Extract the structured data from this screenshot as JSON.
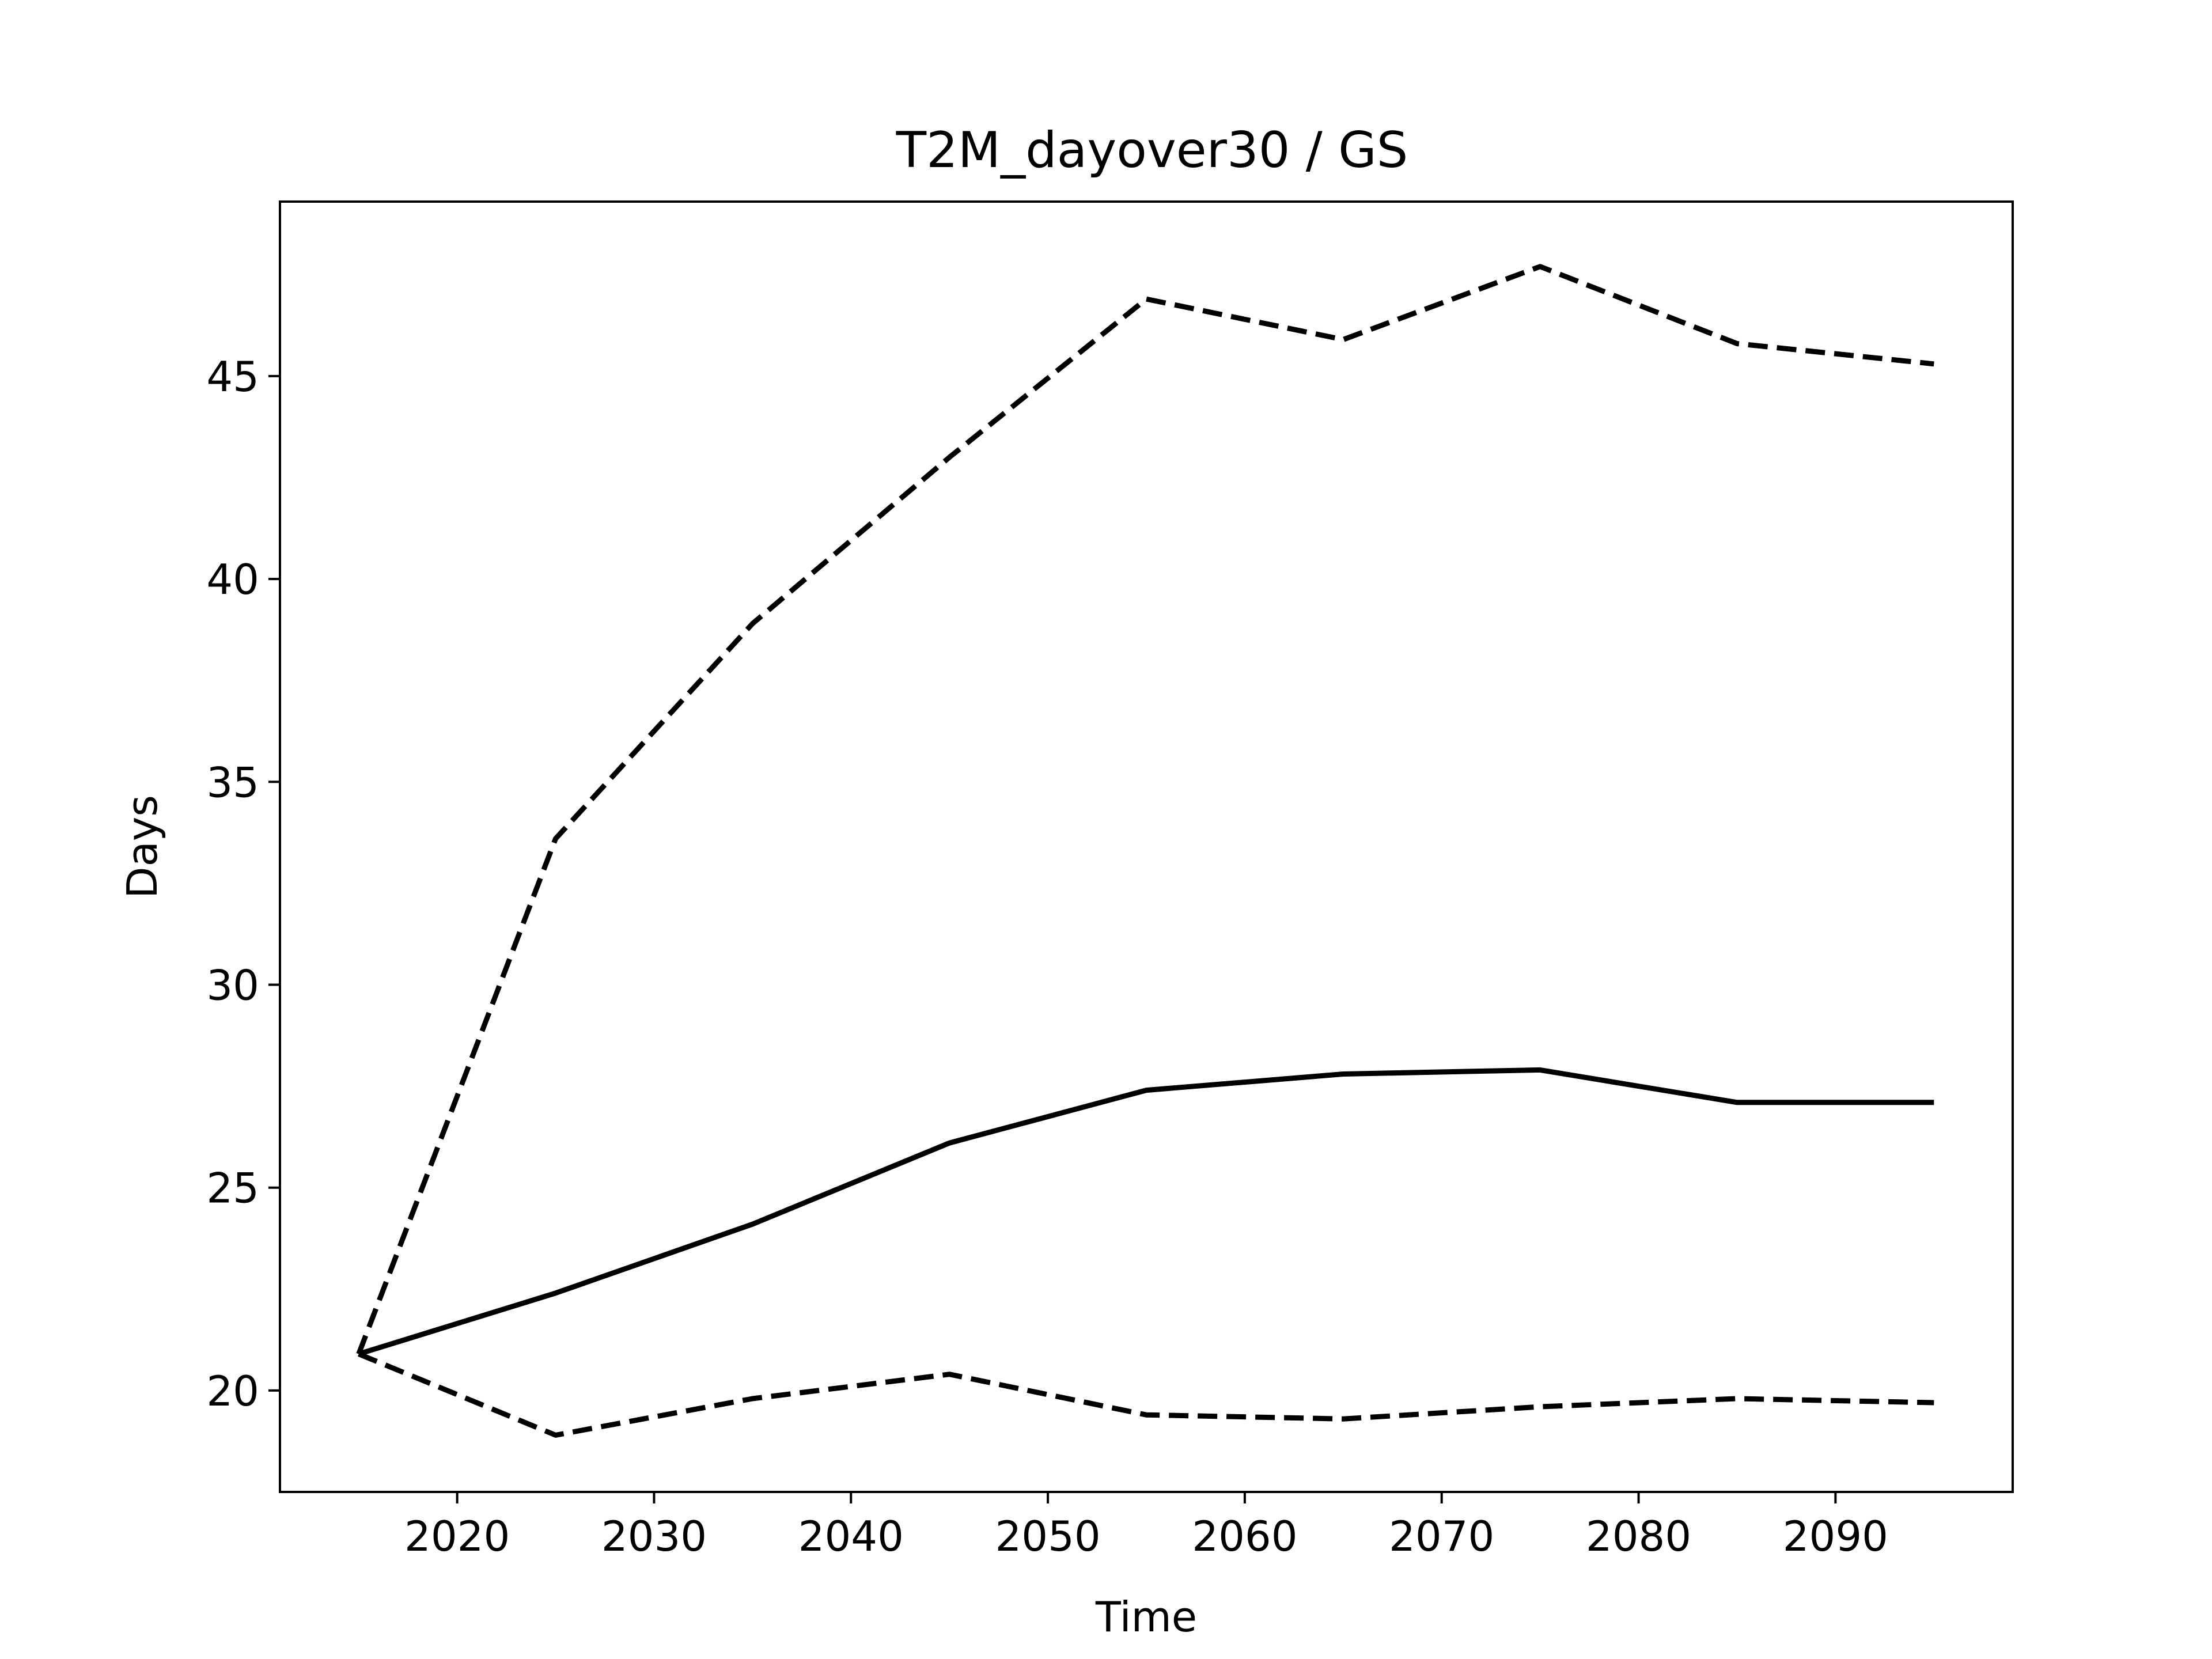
{
  "chart_data": {
    "type": "line",
    "title": "T2M_dayover30 / GS",
    "xlabel": "Time",
    "ylabel": "Days",
    "xlim": [
      2011,
      2099
    ],
    "ylim": [
      17.5,
      49.3
    ],
    "xticks": [
      2020,
      2030,
      2040,
      2050,
      2060,
      2070,
      2080,
      2090
    ],
    "yticks": [
      20,
      25,
      30,
      35,
      40,
      45
    ],
    "grid": false,
    "legend": "none",
    "x": [
      2015,
      2025,
      2035,
      2045,
      2055,
      2065,
      2075,
      2085,
      2095
    ],
    "series": [
      {
        "style": "solid",
        "color": "#000000",
        "values": [
          20.9,
          22.4,
          24.1,
          26.1,
          27.4,
          27.8,
          27.9,
          27.1,
          27.1
        ]
      },
      {
        "style": "dashed",
        "color": "#000000",
        "values": [
          20.9,
          33.6,
          38.9,
          43.0,
          46.9,
          45.9,
          47.7,
          45.8,
          45.3
        ]
      },
      {
        "style": "dashed",
        "color": "#000000",
        "values": [
          20.9,
          18.9,
          19.8,
          20.4,
          19.4,
          19.3,
          19.6,
          19.8,
          19.7
        ]
      }
    ]
  }
}
